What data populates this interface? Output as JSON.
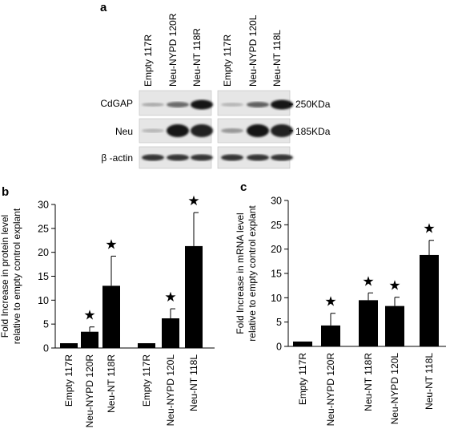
{
  "panel_a": {
    "label": "a",
    "lane_labels_left": [
      "Empty 117R",
      "Neu-NYPD 120R",
      "Neu-NT 118R"
    ],
    "lane_labels_right": [
      "Empty 117R",
      "Neu-NYPD 120L",
      "Neu-NT 118L"
    ],
    "row_labels": [
      "CdGAP",
      "Neu",
      "β -actin"
    ],
    "size_markers": [
      "250KDa",
      "185KDa"
    ]
  },
  "chart_data": [
    {
      "panel_label": "b",
      "type": "bar",
      "categories": [
        "Empty 117R",
        "Neu-NYPD 120R",
        "Neu-NT 118R",
        "Empty 117R",
        "Neu-NYPD 120L",
        "Neu-NT 118L"
      ],
      "values": [
        1.0,
        3.4,
        13.0,
        1.0,
        6.2,
        21.3
      ],
      "errors": [
        0,
        1.0,
        6.2,
        0,
        2.0,
        7.0
      ],
      "significant": [
        false,
        true,
        true,
        false,
        true,
        true
      ],
      "ylabel": "Fold Increase in protein level relative to empty control explant",
      "ylabel_lines": [
        "Fold Increase in protein level",
        "relative to empty control explant"
      ],
      "ylim": [
        0,
        30
      ],
      "yticks": [
        0,
        5,
        10,
        15,
        20,
        25,
        30
      ],
      "star": "★"
    },
    {
      "panel_label": "c",
      "type": "bar",
      "categories": [
        "Empty 117R",
        "Neu-NYPD 120R",
        "Neu-NT 118R",
        "Neu-NYPD 120L",
        "Neu-NT 118L"
      ],
      "values": [
        1.0,
        4.3,
        9.5,
        8.3,
        18.8
      ],
      "errors": [
        0,
        2.5,
        1.5,
        1.8,
        3.0
      ],
      "significant": [
        false,
        true,
        true,
        true,
        true
      ],
      "ylabel": "Fold Increase in mRNA level relative to empty control explant",
      "ylabel_lines": [
        "Fold Increase in mRNA level",
        "relative to empty control explant"
      ],
      "ylim": [
        0,
        30
      ],
      "yticks": [
        0,
        5,
        10,
        15,
        20,
        25,
        30
      ],
      "star": "★"
    }
  ]
}
